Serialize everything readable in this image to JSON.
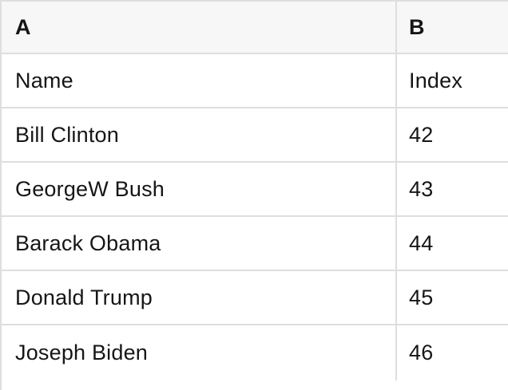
{
  "table": {
    "column_headers": [
      "A",
      "B"
    ],
    "field_labels_row": [
      "Name",
      "Index"
    ],
    "rows": [
      {
        "name": "Name",
        "index": "Index"
      },
      {
        "name": "Bill Clinton",
        "index": "42"
      },
      {
        "name": "GeorgeW Bush",
        "index": "43"
      },
      {
        "name": "Barack Obama",
        "index": "44"
      },
      {
        "name": "Donald Trump",
        "index": "45"
      },
      {
        "name": "Joseph Biden",
        "index": "46"
      }
    ],
    "colors": {
      "header_bg": "#f7f7f7",
      "grid_border": "#dedede",
      "text": "#161616",
      "row_bg": "#ffffff"
    }
  }
}
